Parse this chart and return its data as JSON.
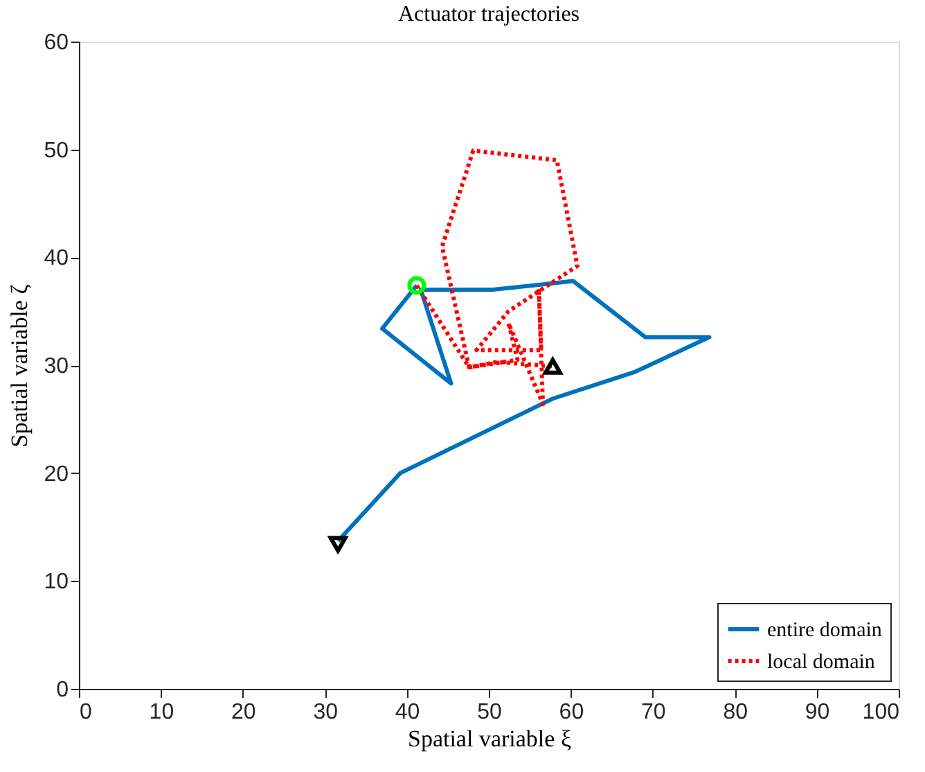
{
  "chart_data": {
    "type": "line",
    "title": "Actuator trajectories",
    "xlabel": "Spatial variable ξ",
    "ylabel": "Spatial variable ζ",
    "xlim": [
      0,
      100
    ],
    "xticks": [
      0,
      10,
      20,
      30,
      40,
      50,
      60,
      70,
      80,
      90,
      100
    ],
    "ylim": [
      0,
      60
    ],
    "yticks": [
      0,
      10,
      20,
      30,
      40,
      50,
      60
    ],
    "grid": false,
    "legend": "bottom right",
    "series": [
      {
        "name": "entire domain",
        "color": "#0072bd",
        "line_style": "solid",
        "marker": "none",
        "x": [
          31.6,
          39.2,
          57.8,
          67.9,
          76.9,
          69.1,
          60.3,
          50.5,
          41.7,
          45.4,
          37.0,
          41.2
        ],
        "values": [
          13.7,
          20.0,
          26.9,
          29.4,
          32.6,
          32.6,
          37.8,
          37.0,
          37.0,
          28.3,
          33.4,
          37.4
        ]
      },
      {
        "name": "local domain",
        "color": "#ff0000",
        "line_style": "dotted",
        "marker": "none",
        "x": [
          41.2,
          47.6,
          44.3,
          48.1,
          58.3,
          60.8,
          52.4,
          48.5,
          56.4,
          56.1,
          56.6,
          52.4,
          53.5,
          47.6,
          51.0,
          57.8
        ],
        "values": [
          37.4,
          29.8,
          41.0,
          49.9,
          49.0,
          39.2,
          35.0,
          31.4,
          31.4,
          37.1,
          26.4,
          33.9,
          30.5,
          29.8,
          30.3,
          29.9
        ]
      },
      {
        "type": "scatter",
        "color": "#00ff00",
        "marker": "circle",
        "x": [
          41.2
        ],
        "values": [
          37.4
        ]
      },
      {
        "type": "scatter",
        "color": "#000000",
        "marker": "triangle-down",
        "x": [
          31.6
        ],
        "values": [
          13.4
        ]
      },
      {
        "type": "scatter",
        "color": "#000000",
        "marker": "triangle",
        "x": [
          57.8
        ],
        "values": [
          29.9
        ]
      }
    ]
  }
}
